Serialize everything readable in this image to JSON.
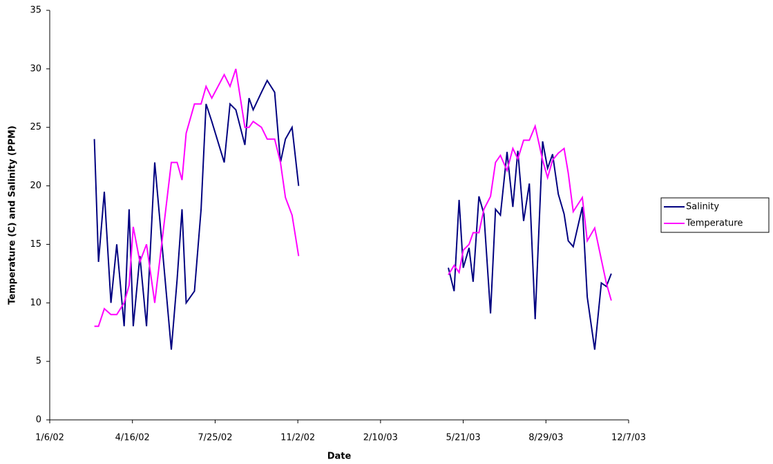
{
  "chart_data": {
    "type": "line",
    "x_label": "Date",
    "y_label": "Temperature (C) and Salinity (PPM)",
    "x": [
      "3/1/02",
      "3/6/02",
      "3/13/02",
      "3/21/02",
      "3/28/02",
      "4/6/02",
      "4/12/02",
      "4/17/02",
      "4/25/02",
      "5/3/02",
      "5/13/02",
      "6/2/02",
      "6/9/02",
      "6/15/02",
      "6/20/02",
      "6/30/02",
      "7/8/02",
      "7/14/02",
      "7/21/02",
      "8/5/02",
      "8/12/02",
      "8/19/02",
      "8/30/02",
      "9/4/02",
      "9/9/02",
      "9/19/02",
      "9/26/02",
      "10/5/02",
      "10/12/02",
      "10/18/02",
      "10/26/02",
      "11/3/02",
      "1/1/03",
      "5/3/03",
      "5/10/03",
      "5/16/03",
      "5/21/03",
      "5/28/03",
      "6/2/03",
      "6/9/03",
      "6/15/03",
      "6/23/03",
      "6/29/03",
      "7/5/03",
      "7/13/03",
      "7/20/03",
      "7/26/03",
      "8/2/03",
      "8/9/03",
      "8/16/03",
      "8/25/03",
      "8/31/03",
      "9/6/03",
      "9/13/03",
      "9/20/03",
      "9/25/03",
      "10/1/03",
      "10/12/03",
      "10/18/03",
      "10/27/03",
      "11/4/03",
      "11/10/03",
      "11/16/03"
    ],
    "series": [
      {
        "name": "Salinity",
        "color": "#000080",
        "values": [
          24,
          13.5,
          19.5,
          10,
          15,
          8,
          18,
          8,
          14,
          8,
          22,
          6,
          12,
          18,
          10,
          11,
          18,
          27,
          25.5,
          22,
          27,
          26.5,
          23.5,
          27.5,
          26.5,
          28,
          29,
          28,
          22,
          24,
          25,
          20,
          null,
          13,
          11,
          18.8,
          13,
          14.7,
          11.8,
          19.1,
          17.6,
          9.1,
          18,
          17.5,
          22.9,
          18.2,
          23,
          17,
          20.2,
          8.6,
          23.8,
          21.5,
          22.7,
          19.3,
          17.6,
          15.3,
          14.8,
          18.2,
          10.5,
          6,
          11.7,
          11.4,
          12.5
        ]
      },
      {
        "name": "Temperature",
        "color": "#ff00ff",
        "values": [
          8,
          8,
          9.5,
          9,
          9,
          10,
          11.5,
          16.5,
          13.5,
          15,
          10,
          22,
          22,
          20.5,
          24.5,
          27,
          27,
          28.5,
          27.5,
          29.5,
          28.5,
          30,
          25,
          25,
          25.5,
          25,
          24,
          24,
          22,
          19,
          17.5,
          14,
          null,
          12.4,
          13.2,
          12.6,
          14.5,
          15,
          16,
          16,
          18,
          19.1,
          22,
          22.6,
          21.3,
          23.2,
          22.3,
          23.9,
          23.9,
          25.1,
          22.2,
          20.7,
          22.2,
          22.8,
          23.2,
          21.1,
          17.8,
          19,
          15.3,
          16.4,
          13.7,
          11.7,
          10.2
        ]
      }
    ],
    "xlim": [
      "1/6/02",
      "12/7/03"
    ],
    "xticks": [
      "1/6/02",
      "4/16/02",
      "7/25/02",
      "11/2/02",
      "2/10/03",
      "5/21/03",
      "8/29/03",
      "12/7/03"
    ],
    "ylim": [
      0,
      35
    ],
    "yticks": [
      0,
      5,
      10,
      15,
      20,
      25,
      30,
      35
    ],
    "grid": false,
    "legend": "right"
  }
}
